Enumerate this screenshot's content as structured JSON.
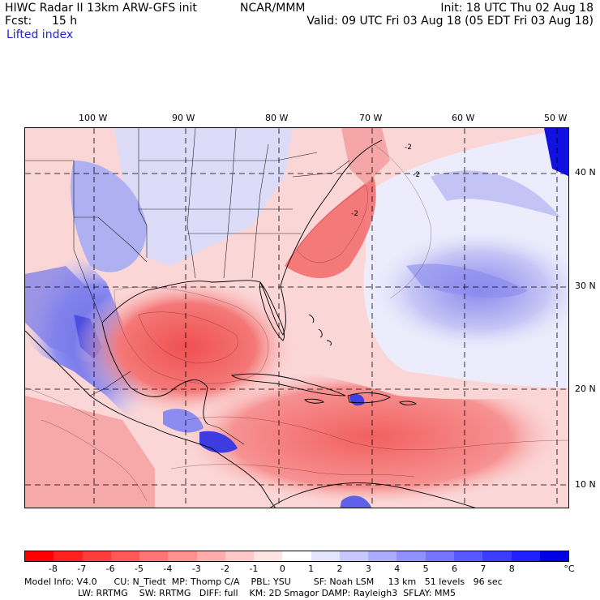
{
  "header": {
    "title": "HIWC Radar II 13km ARW-GFS init",
    "center": "NCAR/MMM",
    "init": "Init: 18 UTC Thu 02 Aug 18",
    "fcst_label": "Fcst:",
    "fcst_value": "15 h",
    "valid": "Valid: 09 UTC Fri 03 Aug 18 (05 EDT Fri 03 Aug 18)",
    "field": "Lifted index"
  },
  "longitudes": [
    "100 W",
    "90 W",
    "80 W",
    "70 W",
    "60 W",
    "50 W"
  ],
  "latitudes": [
    "40 N",
    "30 N",
    "20 N",
    "10 N"
  ],
  "colorbar": {
    "labels": [
      "-8",
      "-7",
      "-6",
      "-5",
      "-4",
      "-3",
      "-2",
      "-1",
      "0",
      "1",
      "2",
      "3",
      "4",
      "5",
      "6",
      "7",
      "8"
    ],
    "unit": "°C",
    "colors": [
      "#ff0000",
      "#ff2020",
      "#ff3c3c",
      "#ff5858",
      "#ff7474",
      "#ff9090",
      "#ffacac",
      "#ffc8c8",
      "#ffe4e4",
      "#ffffff",
      "#e4e4ff",
      "#c8c8ff",
      "#acacff",
      "#9090ff",
      "#7474ff",
      "#5858ff",
      "#3c3cff",
      "#2020ff",
      "#0000e6"
    ]
  },
  "footer": {
    "line1": "Model Info: V4.0      CU: N_Tiedt  MP: Thomp C/A    PBL: YSU        SF: Noah LSM     13 km   51 levels   96 sec",
    "line2": "LW: RRTMG    SW: RRTMG   DIFF: full    KM: 2D Smagor DAMP: Rayleigh3  SFLAY: MM5"
  }
}
